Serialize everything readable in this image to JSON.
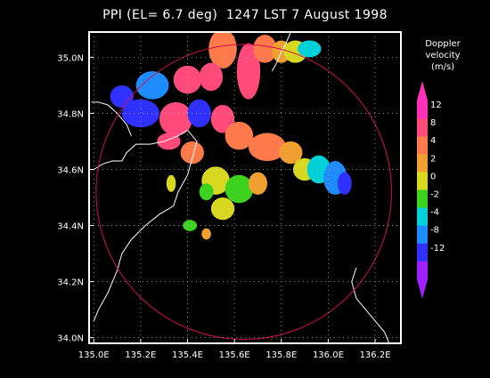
{
  "chart_data": {
    "type": "heatmap",
    "title": "PPI (EL= 6.7 deg)  1247 LST 7 August 1998",
    "x_ticks": [
      "135.0E",
      "135.2E",
      "135.4E",
      "135.6E",
      "135.8E",
      "136.0E",
      "136.2E"
    ],
    "x_tick_values": [
      135.0,
      135.2,
      135.4,
      135.6,
      135.8,
      136.0,
      136.2
    ],
    "y_ticks": [
      "34.0N",
      "34.2N",
      "34.4N",
      "34.6N",
      "34.8N",
      "35.0N"
    ],
    "y_tick_values": [
      34.0,
      34.2,
      34.4,
      34.6,
      34.8,
      35.0
    ],
    "xlim": [
      134.98,
      136.31
    ],
    "ylim": [
      33.98,
      35.09
    ],
    "grid": true,
    "range_ring": {
      "center_lon": 135.64,
      "center_lat": 34.52,
      "radius_deg_lon": 0.63
    },
    "colorbar": {
      "title_lines": [
        "Doppler",
        "velocity",
        "(m/s)"
      ],
      "labels": [
        "12",
        "8",
        "4",
        "2",
        "0",
        "-2",
        "-4",
        "-8",
        "-12"
      ],
      "colors": [
        "#ff2fb7",
        "#ff4a7a",
        "#ff7a4a",
        "#f0a030",
        "#d8d820",
        "#3cd21e",
        "#00d0d8",
        "#1e8cff",
        "#3030ff",
        "#a020ff"
      ]
    },
    "regions": [
      {
        "lon": 135.55,
        "lat": 35.03,
        "rx": 0.06,
        "ry": 0.07,
        "value": 5
      },
      {
        "lon": 135.66,
        "lat": 34.95,
        "rx": 0.05,
        "ry": 0.1,
        "value": 8
      },
      {
        "lon": 135.73,
        "lat": 35.03,
        "rx": 0.05,
        "ry": 0.05,
        "value": 6
      },
      {
        "lon": 135.8,
        "lat": 35.02,
        "rx": 0.04,
        "ry": 0.04,
        "value": 3
      },
      {
        "lon": 135.86,
        "lat": 35.02,
        "rx": 0.05,
        "ry": 0.04,
        "value": 0
      },
      {
        "lon": 135.92,
        "lat": 35.03,
        "rx": 0.05,
        "ry": 0.03,
        "value": -4
      },
      {
        "lon": 135.5,
        "lat": 34.93,
        "rx": 0.05,
        "ry": 0.05,
        "value": 9
      },
      {
        "lon": 135.4,
        "lat": 34.92,
        "rx": 0.06,
        "ry": 0.05,
        "value": 10
      },
      {
        "lon": 135.25,
        "lat": 34.9,
        "rx": 0.07,
        "ry": 0.05,
        "value": -8
      },
      {
        "lon": 135.12,
        "lat": 34.86,
        "rx": 0.05,
        "ry": 0.04,
        "value": -10
      },
      {
        "lon": 135.2,
        "lat": 34.8,
        "rx": 0.08,
        "ry": 0.05,
        "value": -12
      },
      {
        "lon": 135.35,
        "lat": 34.78,
        "rx": 0.07,
        "ry": 0.06,
        "value": 11
      },
      {
        "lon": 135.45,
        "lat": 34.8,
        "rx": 0.05,
        "ry": 0.05,
        "value": -11
      },
      {
        "lon": 135.55,
        "lat": 34.78,
        "rx": 0.05,
        "ry": 0.05,
        "value": 8
      },
      {
        "lon": 135.32,
        "lat": 34.7,
        "rx": 0.05,
        "ry": 0.03,
        "value": 10
      },
      {
        "lon": 135.42,
        "lat": 34.66,
        "rx": 0.05,
        "ry": 0.04,
        "value": 6
      },
      {
        "lon": 135.62,
        "lat": 34.72,
        "rx": 0.06,
        "ry": 0.05,
        "value": 7
      },
      {
        "lon": 135.74,
        "lat": 34.68,
        "rx": 0.08,
        "ry": 0.05,
        "value": 5
      },
      {
        "lon": 135.84,
        "lat": 34.66,
        "rx": 0.05,
        "ry": 0.04,
        "value": 3
      },
      {
        "lon": 135.9,
        "lat": 34.6,
        "rx": 0.05,
        "ry": 0.04,
        "value": 0
      },
      {
        "lon": 135.96,
        "lat": 34.6,
        "rx": 0.05,
        "ry": 0.05,
        "value": -3
      },
      {
        "lon": 136.03,
        "lat": 34.57,
        "rx": 0.05,
        "ry": 0.06,
        "value": -7
      },
      {
        "lon": 136.07,
        "lat": 34.55,
        "rx": 0.03,
        "ry": 0.04,
        "value": -11
      },
      {
        "lon": 135.52,
        "lat": 34.56,
        "rx": 0.06,
        "ry": 0.05,
        "value": 1
      },
      {
        "lon": 135.62,
        "lat": 34.53,
        "rx": 0.06,
        "ry": 0.05,
        "value": -1
      },
      {
        "lon": 135.7,
        "lat": 34.55,
        "rx": 0.04,
        "ry": 0.04,
        "value": 2
      },
      {
        "lon": 135.55,
        "lat": 34.46,
        "rx": 0.05,
        "ry": 0.04,
        "value": 0
      },
      {
        "lon": 135.48,
        "lat": 34.52,
        "rx": 0.03,
        "ry": 0.03,
        "value": -2
      },
      {
        "lon": 135.33,
        "lat": 34.55,
        "rx": 0.02,
        "ry": 0.03,
        "value": 1
      },
      {
        "lon": 135.41,
        "lat": 34.4,
        "rx": 0.03,
        "ry": 0.02,
        "value": -1
      },
      {
        "lon": 135.48,
        "lat": 34.37,
        "rx": 0.02,
        "ry": 0.02,
        "value": 2
      }
    ]
  }
}
